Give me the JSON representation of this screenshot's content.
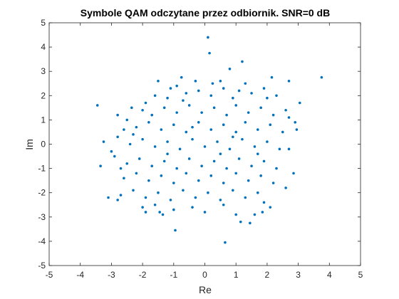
{
  "chart_data": {
    "type": "scatter",
    "title": "Symbole QAM odczytane przez odbiornik. SNR=0 dB",
    "xlabel": "Re",
    "ylabel": "Im",
    "xlim": [
      -5,
      5
    ],
    "ylim": [
      -5,
      5
    ],
    "xticks": [
      -5,
      -4,
      -3,
      -2,
      -1,
      0,
      1,
      2,
      3,
      4,
      5
    ],
    "yticks": [
      -5,
      -4,
      -3,
      -2,
      -1,
      0,
      1,
      2,
      3,
      4,
      5
    ],
    "xtick_labels": [
      "-5",
      "-4",
      "-3",
      "-2",
      "-1",
      "0",
      "1",
      "2",
      "3",
      "4",
      "5"
    ],
    "ytick_labels": [
      "-5",
      "-4",
      "-3",
      "-2",
      "-1",
      "0",
      "1",
      "2",
      "3",
      "4",
      "5"
    ],
    "grid": false,
    "marker_color": "#0072bd",
    "series": [
      {
        "points": [
          [
            0.1,
            4.4
          ],
          [
            0.15,
            3.75
          ],
          [
            -0.75,
            2.75
          ],
          [
            0.25,
            2.5
          ],
          [
            0.8,
            3.1
          ],
          [
            1.2,
            3.4
          ],
          [
            3.75,
            2.75
          ],
          [
            2.7,
            2.6
          ],
          [
            2.15,
            2.75
          ],
          [
            -1.5,
            2.6
          ],
          [
            -0.9,
            2.4
          ],
          [
            -3.45,
            1.6
          ],
          [
            -2.35,
            1.5
          ],
          [
            3.05,
            1.7
          ],
          [
            2.95,
            0.6
          ],
          [
            -3.25,
            0.1
          ],
          [
            -3.35,
            -0.9
          ],
          [
            -3.1,
            -2.2
          ],
          [
            -2.8,
            -2.3
          ],
          [
            -2.7,
            -2.1
          ],
          [
            -2.0,
            -2.6
          ],
          [
            -1.9,
            -2.8
          ],
          [
            -1.35,
            -2.9
          ],
          [
            -1.45,
            -2.8
          ],
          [
            -0.95,
            -3.55
          ],
          [
            0.65,
            -4.05
          ],
          [
            1.15,
            -3.2
          ],
          [
            1.6,
            -2.9
          ],
          [
            1.45,
            -3.25
          ],
          [
            1.85,
            -2.8
          ],
          [
            2.1,
            -2.6
          ],
          [
            2.6,
            -1.8
          ],
          [
            2.85,
            -1.2
          ],
          [
            2.7,
            -0.2
          ],
          [
            -1.6,
            2.0
          ],
          [
            -1.2,
            1.9
          ],
          [
            -0.6,
            2.1
          ],
          [
            -0.2,
            2.2
          ],
          [
            0.2,
            2.0
          ],
          [
            0.6,
            2.3
          ],
          [
            1.1,
            2.2
          ],
          [
            1.5,
            2.1
          ],
          [
            1.9,
            2.3
          ],
          [
            2.3,
            2.0
          ],
          [
            -2.0,
            1.4
          ],
          [
            -1.7,
            1.2
          ],
          [
            -1.3,
            1.5
          ],
          [
            -0.9,
            1.3
          ],
          [
            -0.5,
            1.6
          ],
          [
            -0.1,
            1.3
          ],
          [
            0.3,
            1.5
          ],
          [
            0.7,
            1.2
          ],
          [
            1.0,
            1.6
          ],
          [
            1.4,
            1.3
          ],
          [
            1.8,
            1.5
          ],
          [
            2.2,
            1.2
          ],
          [
            2.6,
            1.4
          ],
          [
            -2.5,
            1.0
          ],
          [
            -2.2,
            0.7
          ],
          [
            -1.8,
            0.9
          ],
          [
            -1.4,
            0.6
          ],
          [
            -1.0,
            0.8
          ],
          [
            -0.6,
            0.5
          ],
          [
            -0.2,
            0.9
          ],
          [
            0.2,
            0.6
          ],
          [
            0.6,
            0.8
          ],
          [
            1.0,
            0.5
          ],
          [
            1.3,
            0.9
          ],
          [
            1.7,
            0.6
          ],
          [
            2.1,
            0.8
          ],
          [
            2.5,
            0.5
          ],
          [
            -2.8,
            0.3
          ],
          [
            -2.4,
            0.0
          ],
          [
            -2.0,
            0.2
          ],
          [
            -1.6,
            -0.1
          ],
          [
            -1.2,
            0.1
          ],
          [
            -0.8,
            -0.2
          ],
          [
            -0.4,
            0.2
          ],
          [
            0.0,
            -0.1
          ],
          [
            0.4,
            0.1
          ],
          [
            0.8,
            -0.2
          ],
          [
            1.2,
            0.2
          ],
          [
            1.6,
            -0.1
          ],
          [
            2.0,
            0.1
          ],
          [
            2.4,
            -0.2
          ],
          [
            -2.9,
            -0.5
          ],
          [
            -2.5,
            -0.8
          ],
          [
            -2.1,
            -0.6
          ],
          [
            -1.7,
            -0.9
          ],
          [
            -1.3,
            -0.7
          ],
          [
            -0.9,
            -1.0
          ],
          [
            -0.5,
            -0.6
          ],
          [
            -0.1,
            -0.9
          ],
          [
            0.3,
            -0.7
          ],
          [
            0.7,
            -1.0
          ],
          [
            1.1,
            -0.6
          ],
          [
            1.5,
            -0.9
          ],
          [
            1.9,
            -0.7
          ],
          [
            2.3,
            -1.0
          ],
          [
            -2.6,
            -1.4
          ],
          [
            -2.2,
            -1.2
          ],
          [
            -1.8,
            -1.5
          ],
          [
            -1.4,
            -1.3
          ],
          [
            -1.0,
            -1.6
          ],
          [
            -0.6,
            -1.2
          ],
          [
            -0.2,
            -1.5
          ],
          [
            0.2,
            -1.3
          ],
          [
            0.6,
            -1.6
          ],
          [
            1.0,
            -1.2
          ],
          [
            1.4,
            -1.5
          ],
          [
            1.8,
            -1.3
          ],
          [
            2.2,
            -1.6
          ],
          [
            -2.3,
            -1.9
          ],
          [
            -1.9,
            -2.2
          ],
          [
            -1.5,
            -2.0
          ],
          [
            -1.1,
            -2.3
          ],
          [
            -0.7,
            -1.9
          ],
          [
            -0.3,
            -2.2
          ],
          [
            0.1,
            -2.0
          ],
          [
            0.5,
            -2.3
          ],
          [
            0.9,
            -1.9
          ],
          [
            1.3,
            -2.2
          ],
          [
            1.7,
            -2.0
          ],
          [
            -1.6,
            -2.5
          ],
          [
            -1.0,
            -2.7
          ],
          [
            -0.4,
            -2.6
          ],
          [
            0.0,
            -2.8
          ],
          [
            0.6,
            -2.5
          ],
          [
            1.0,
            -2.9
          ],
          [
            1.9,
            -2.4
          ],
          [
            -1.1,
            2.3
          ],
          [
            -0.3,
            2.6
          ],
          [
            0.5,
            2.6
          ],
          [
            1.3,
            2.5
          ],
          [
            -2.8,
            1.2
          ],
          [
            -2.6,
            0.6
          ],
          [
            -3.0,
            -0.3
          ],
          [
            -2.7,
            -1.0
          ],
          [
            2.9,
            0.9
          ],
          [
            2.7,
            1.1
          ],
          [
            -1.9,
            1.7
          ],
          [
            -0.7,
            1.8
          ],
          [
            0.9,
            1.9
          ],
          [
            2.0,
            1.9
          ],
          [
            -1.2,
            -0.4
          ],
          [
            0.5,
            -0.4
          ],
          [
            1.7,
            -0.4
          ],
          [
            -0.4,
            0.7
          ],
          [
            0.9,
            0.3
          ],
          [
            -2.3,
            0.4
          ]
        ]
      }
    ]
  }
}
